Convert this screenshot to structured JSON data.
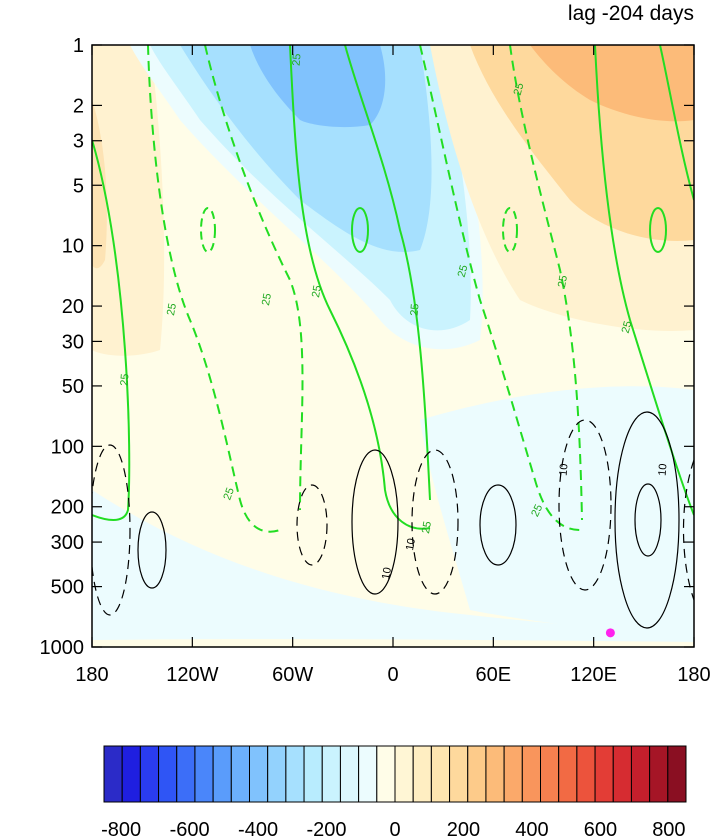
{
  "chart_data": {
    "type": "heatmap",
    "title": "lag -204 days",
    "x_ticks": [
      "180",
      "120W",
      "60W",
      "0",
      "60E",
      "120E",
      "180"
    ],
    "x_tick_values": [
      -180,
      -120,
      -60,
      0,
      60,
      120,
      180
    ],
    "xlim": [
      -180,
      180
    ],
    "y_ticks": [
      "1",
      "2",
      "3",
      "5",
      "10",
      "20",
      "30",
      "50",
      "100",
      "200",
      "300",
      "500",
      "1000"
    ],
    "y_tick_values": [
      1,
      2,
      3,
      5,
      10,
      20,
      30,
      50,
      100,
      200,
      300,
      500,
      1000
    ],
    "ylim": [
      1,
      1000
    ],
    "y_scale": "log",
    "y_inverted": true,
    "colorbar": {
      "labels": [
        "-800",
        "-600",
        "-400",
        "-200",
        "0",
        "200",
        "400",
        "600",
        "800"
      ],
      "min": -800,
      "max": 800,
      "step": 50,
      "colors": [
        "#2b2bc8",
        "#1f1fe0",
        "#2a3cf0",
        "#2f55f5",
        "#3c6ef8",
        "#4a86fa",
        "#5a9cfb",
        "#6cb0fc",
        "#80c2fd",
        "#93d2fd",
        "#a6e0fe",
        "#b8ecfe",
        "#caf3fe",
        "#dcf8fe",
        "#ecfcfe",
        "#fffde8",
        "#fff6d5",
        "#ffeec2",
        "#fee5b0",
        "#fed99d",
        "#fdcb8a",
        "#fcbb79",
        "#fba96a",
        "#f9955c",
        "#f6804f",
        "#f26a44",
        "#ec533c",
        "#e33d36",
        "#d62c31",
        "#c41f2c",
        "#a51526",
        "#8a0f22"
      ]
    },
    "green_contour_label": "25",
    "black_contour_label": "10",
    "marker": {
      "lon": 130,
      "p": 850,
      "color": "#ff22ee"
    }
  }
}
